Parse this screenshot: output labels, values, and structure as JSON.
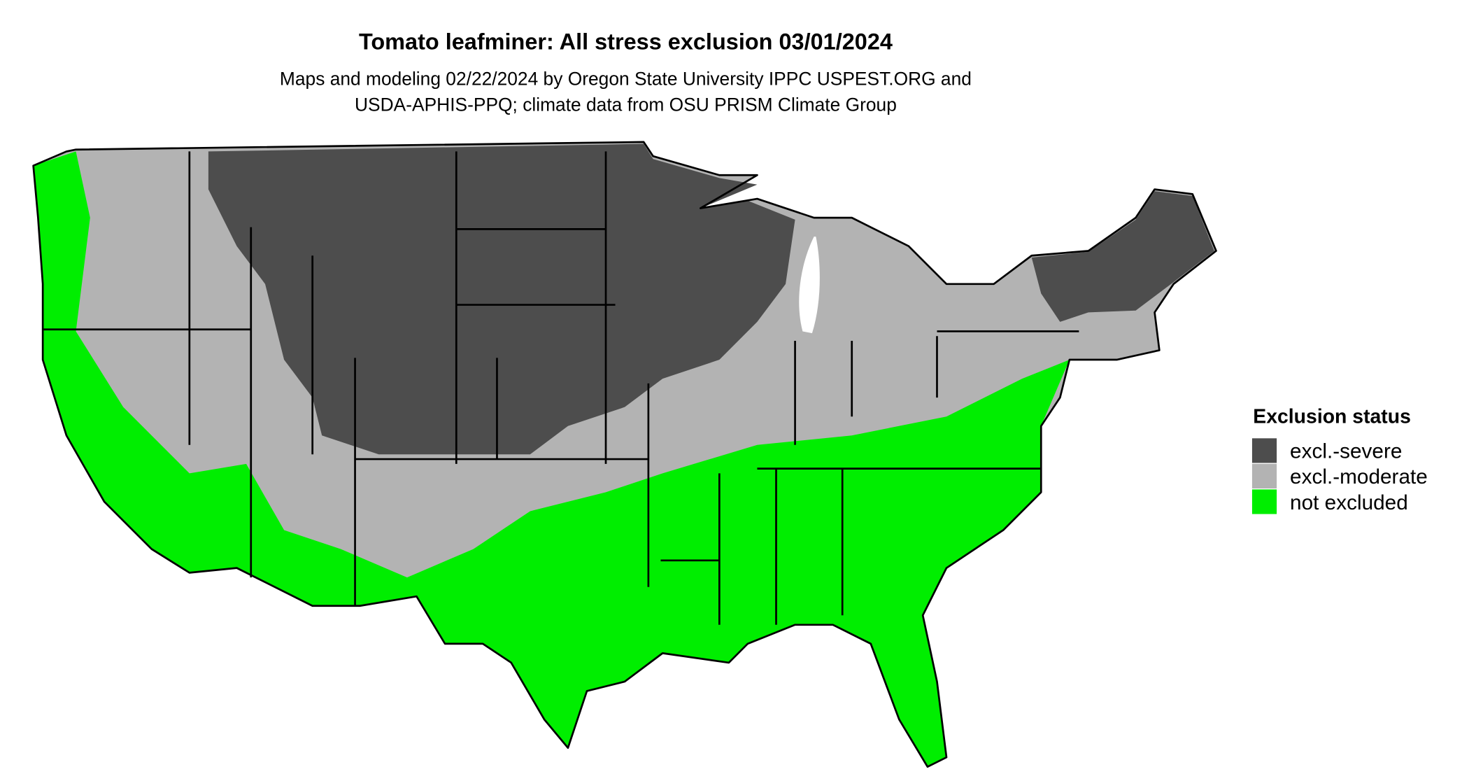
{
  "header": {
    "title": "Tomato leafminer: All stress exclusion 03/01/2024",
    "subtitle_lines": [
      "Maps and modeling 02/22/2024 by Oregon State University IPPC USPEST.ORG and",
      "USDA-APHIS-PPQ; climate data from OSU PRISM Climate Group"
    ]
  },
  "legend": {
    "title": "Exclusion status",
    "items": [
      {
        "label": "excl.-severe",
        "color": "#4d4d4d"
      },
      {
        "label": "excl.-moderate",
        "color": "#b3b3b3"
      },
      {
        "label": "not excluded",
        "color": "#00ee00"
      }
    ]
  }
}
